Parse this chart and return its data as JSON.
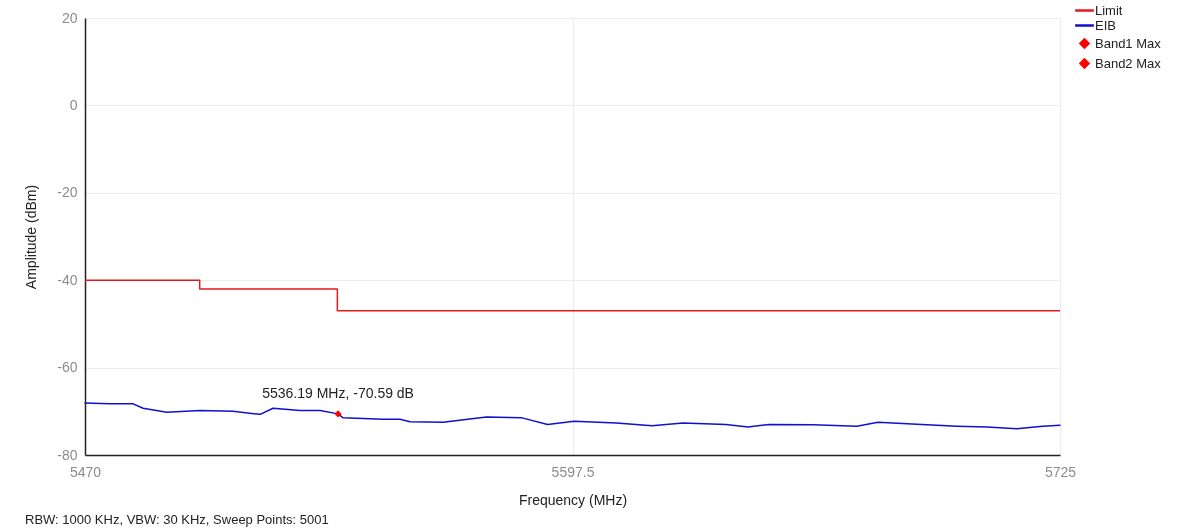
{
  "chart_data": {
    "type": "line",
    "xlabel": "Frequency (MHz)",
    "ylabel": "Amplitude (dBm)",
    "xlim": [
      5470,
      5725
    ],
    "xticks": [
      5470,
      5597.5,
      5725
    ],
    "ylim": [
      -80,
      20
    ],
    "yticks": [
      -80,
      -60,
      -40,
      -20,
      0,
      20
    ],
    "grid": true,
    "legend": "top right",
    "series": [
      {
        "name": "Limit",
        "type": "step",
        "color": "#e31a1c",
        "x": [
          5470,
          5500,
          5536,
          5725
        ],
        "values": [
          -40,
          -42,
          -47,
          -47
        ]
      },
      {
        "name": "EIB",
        "color": "#1010d0",
        "x": [
          5470,
          5476.5,
          5482.6,
          5485.2,
          5491.4,
          5500,
          5508.7,
          5515.8,
          5519.2,
          5526.2,
          5531.5,
          5536.19,
          5537.5,
          5548,
          5552.4,
          5555,
          5563.6,
          5575,
          5584.3,
          5591,
          5597.9,
          5609,
          5618.3,
          5626.4,
          5637.6,
          5643.4,
          5649,
          5660.4,
          5671.9,
          5677.4,
          5688.9,
          5698,
          5705.9,
          5713.7,
          5720.5,
          5725
        ],
        "values": [
          -68.1,
          -68.3,
          -68.3,
          -69.3,
          -70.2,
          -69.8,
          -70.0,
          -70.7,
          -69.3,
          -69.8,
          -69.8,
          -70.59,
          -71.5,
          -71.8,
          -71.8,
          -72.4,
          -72.5,
          -71.3,
          -71.5,
          -73.0,
          -72.3,
          -72.7,
          -73.3,
          -72.7,
          -73.0,
          -73.6,
          -73.0,
          -73.1,
          -73.4,
          -72.5,
          -73.0,
          -73.4,
          -73.6,
          -74.0,
          -73.4,
          -73.2
        ]
      },
      {
        "name": "Band1 Max",
        "type": "scatter",
        "marker": "diamond",
        "color": "#ff0000",
        "x": [
          5536.19
        ],
        "values": [
          -70.59
        ]
      },
      {
        "name": "Band2 Max",
        "type": "scatter",
        "marker": "diamond",
        "color": "#ff0000"
      }
    ],
    "annotations": [
      {
        "text": "5536.19 MHz, -70.59 dB",
        "x": 5536.19,
        "y": -70.59
      },
      "RBW: 1000 KHz, VBW: 30 KHz, Sweep Points: 5001"
    ]
  }
}
